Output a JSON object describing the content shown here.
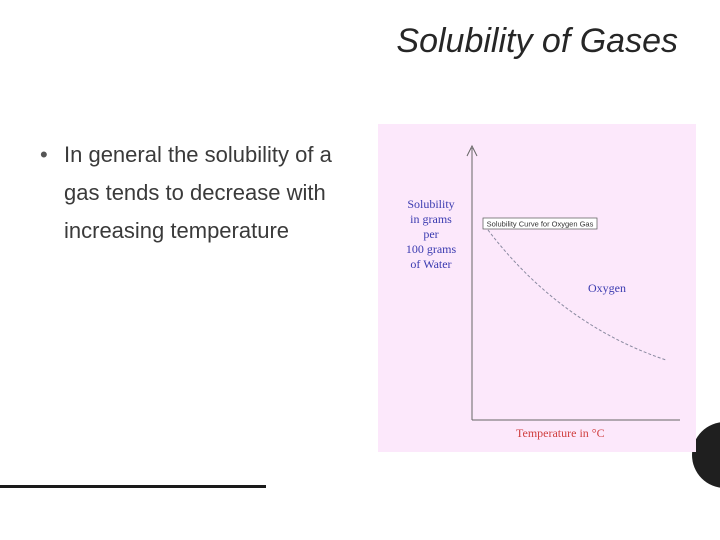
{
  "header": {
    "title": "Solubility of Gases"
  },
  "bullets": [
    "In general the solubility of a gas tends to decrease with increasing temperature"
  ],
  "figure": {
    "y_axis_label": [
      "Solubility",
      "in grams",
      "per",
      "100 grams",
      "of Water"
    ],
    "caption": "Solubility Curve for Oxygen Gas",
    "curve_label": "Oxygen",
    "x_axis_label": "Temperature in °C"
  }
}
